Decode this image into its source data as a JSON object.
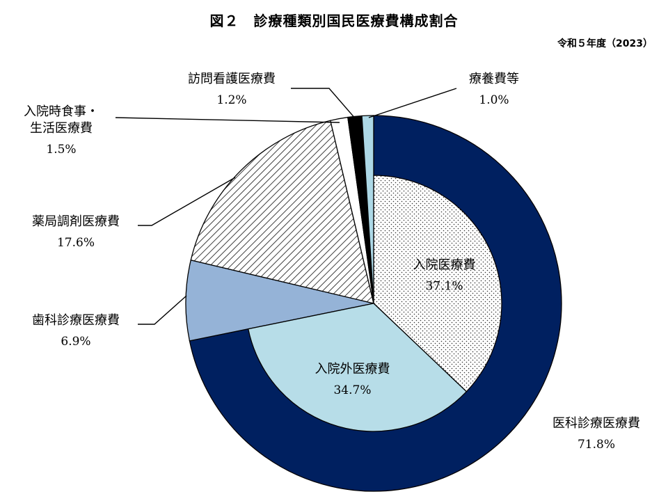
{
  "chart_data": {
    "type": "pie",
    "title": "図２　診療種類別国民医療費構成割合",
    "subtitle": "令和５年度（2023）",
    "unit": "%",
    "outer_ring": [
      {
        "name": "医科診療医療費",
        "value": 71.8,
        "value_label": "71.8%",
        "color": "#002060",
        "pattern": "solid"
      },
      {
        "name": "歯科診療医療費",
        "value": 6.9,
        "value_label": "6.9%",
        "color": "#95b3d7",
        "pattern": "solid"
      },
      {
        "name": "薬局調剤医療費",
        "value": 17.6,
        "value_label": "17.6%",
        "color": "#ffffff",
        "pattern": "diagonal-hatch"
      },
      {
        "name": "入院時食事・生活医療費",
        "value": 1.5,
        "value_label": "1.5%",
        "color": "#ffffff",
        "pattern": "solid"
      },
      {
        "name": "訪問看護医療費",
        "value": 1.2,
        "value_label": "1.2%",
        "color": "#000000",
        "pattern": "solid"
      },
      {
        "name": "療養費等",
        "value": 1.0,
        "value_label": "1.0%",
        "color": "#add8e6",
        "pattern": "solid"
      }
    ],
    "inner_breakdown": {
      "parent": "医科診療医療費",
      "slices": [
        {
          "name": "入院医療費",
          "value": 37.1,
          "value_label": "37.1%",
          "color": "#ffffff",
          "pattern": "dots"
        },
        {
          "name": "入院外医療費",
          "value": 34.7,
          "value_label": "34.7%",
          "color": "#b7dde8",
          "pattern": "solid"
        }
      ]
    }
  }
}
